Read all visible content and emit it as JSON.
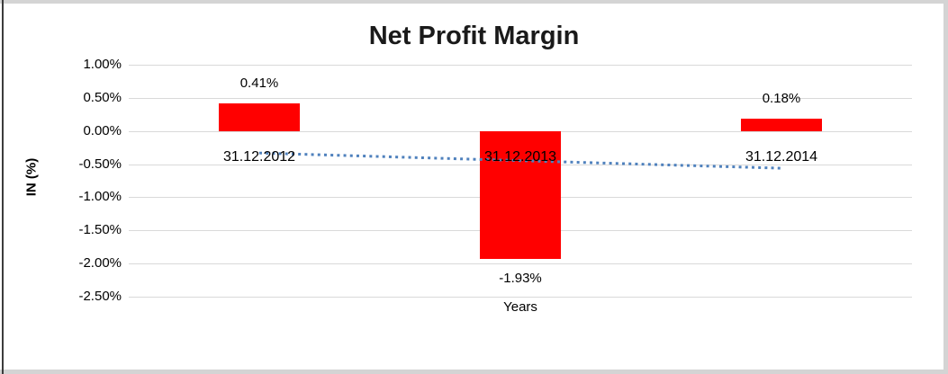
{
  "frame": {
    "background": "#ffffff",
    "edge_color": "#d4d4d4",
    "left_edge_color": "#3c3c3c"
  },
  "chart_data": {
    "type": "bar",
    "title": "Net Profit Margin",
    "xlabel": "Years",
    "ylabel": "IN (%)",
    "categories": [
      "31.12.2012",
      "31.12.2013",
      "31.12.2014"
    ],
    "values": [
      0.41,
      -1.93,
      0.18
    ],
    "data_labels": [
      "0.41%",
      "-1.93%",
      "0.18%"
    ],
    "y_ticks": [
      {
        "label": "1.00%",
        "value": 1.0
      },
      {
        "label": "0.50%",
        "value": 0.5
      },
      {
        "label": "0.00%",
        "value": 0.0
      },
      {
        "label": "-0.50%",
        "value": -0.5
      },
      {
        "label": "-1.00%",
        "value": -1.0
      },
      {
        "label": "-1.50%",
        "value": -1.5
      },
      {
        "label": "-2.00%",
        "value": -2.0
      },
      {
        "label": "-2.50%",
        "value": -2.5
      }
    ],
    "ylim": [
      -2.5,
      1.0
    ],
    "grid": true,
    "legend": "none",
    "bar_color": "#ff0000",
    "gridline_color": "#d9d9d9",
    "trendline": {
      "type": "linear",
      "style": "dotted",
      "color": "#4f81bd",
      "start_value": -0.332,
      "end_value": -0.562
    }
  }
}
